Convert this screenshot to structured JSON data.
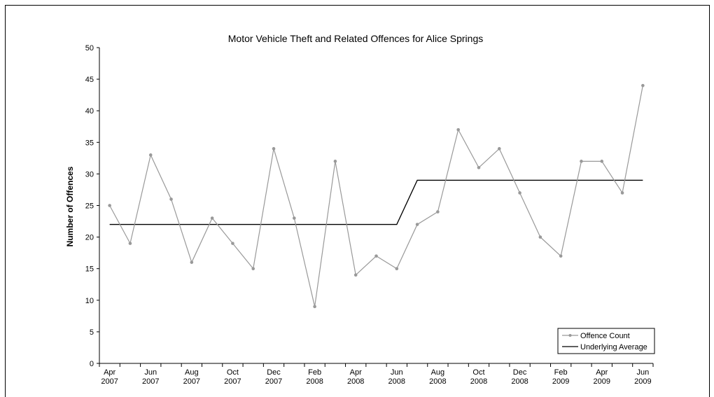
{
  "chart_data": {
    "type": "line",
    "title": "Motor Vehicle Theft and Related Offences for Alice Springs",
    "xlabel": "",
    "ylabel": "Number of Offences",
    "ylim": [
      0,
      50
    ],
    "yticks": [
      0,
      5,
      10,
      15,
      20,
      25,
      30,
      35,
      40,
      45,
      50
    ],
    "x": [
      "Apr 2007",
      "May 2007",
      "Jun 2007",
      "Jul 2007",
      "Aug 2007",
      "Sep 2007",
      "Oct 2007",
      "Nov 2007",
      "Dec 2007",
      "Jan 2008",
      "Feb 2008",
      "Mar 2008",
      "Apr 2008",
      "May 2008",
      "Jun 2008",
      "Jul 2008",
      "Aug 2008",
      "Sep 2008",
      "Oct 2008",
      "Nov 2008",
      "Dec 2008",
      "Jan 2009",
      "Feb 2009",
      "Mar 2009",
      "Apr 2009",
      "May 2009",
      "Jun 2009"
    ],
    "xtick_labels": [
      {
        "index": 0,
        "month": "Apr",
        "year": "2007"
      },
      {
        "index": 2,
        "month": "Jun",
        "year": "2007"
      },
      {
        "index": 4,
        "month": "Aug",
        "year": "2007"
      },
      {
        "index": 6,
        "month": "Oct",
        "year": "2007"
      },
      {
        "index": 8,
        "month": "Dec",
        "year": "2007"
      },
      {
        "index": 10,
        "month": "Feb",
        "year": "2008"
      },
      {
        "index": 12,
        "month": "Apr",
        "year": "2008"
      },
      {
        "index": 14,
        "month": "Jun",
        "year": "2008"
      },
      {
        "index": 16,
        "month": "Aug",
        "year": "2008"
      },
      {
        "index": 18,
        "month": "Oct",
        "year": "2008"
      },
      {
        "index": 20,
        "month": "Dec",
        "year": "2008"
      },
      {
        "index": 22,
        "month": "Feb",
        "year": "2009"
      },
      {
        "index": 24,
        "month": "Apr",
        "year": "2009"
      },
      {
        "index": 26,
        "month": "Jun",
        "year": "2009"
      }
    ],
    "series": [
      {
        "name": "Offence Count",
        "color": "#999999",
        "marker": "circle",
        "values": [
          25,
          19,
          33,
          26,
          16,
          23,
          19,
          15,
          34,
          23,
          9,
          32,
          14,
          17,
          15,
          22,
          24,
          37,
          31,
          34,
          27,
          20,
          17,
          32,
          32,
          27,
          44
        ]
      },
      {
        "name": "Underlying Average",
        "color": "#000000",
        "marker": "none",
        "values": [
          22,
          22,
          22,
          22,
          22,
          22,
          22,
          22,
          22,
          22,
          22,
          22,
          22,
          22,
          22,
          29,
          29,
          29,
          29,
          29,
          29,
          29,
          29,
          29,
          29,
          29,
          29
        ]
      }
    ],
    "legend_position": "bottom-right",
    "grid": false
  }
}
